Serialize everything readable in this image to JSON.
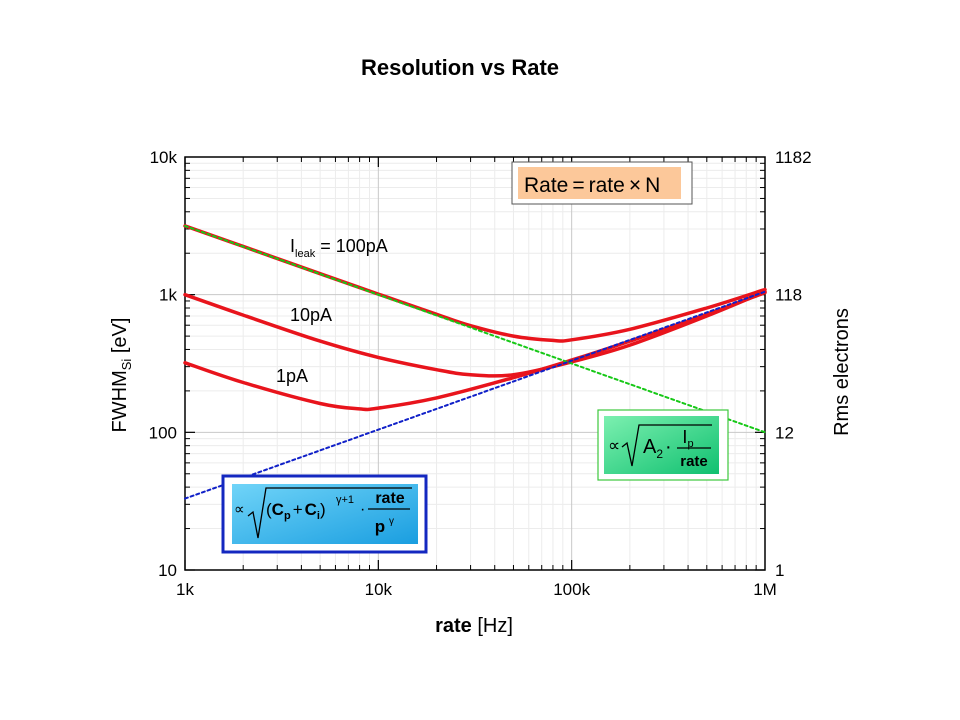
{
  "title": "Resolution vs Rate",
  "chart_data": {
    "type": "line",
    "title": "Resolution vs Rate",
    "x_axis": {
      "label_bold": "rate",
      "label_rest": " [Hz]",
      "scale": "log",
      "range": [
        1000,
        1000000
      ],
      "ticks": [
        "1k",
        "10k",
        "100k",
        "1M"
      ]
    },
    "y_axis_left": {
      "label_main": "FWHM",
      "label_sub": "Si",
      "label_rest": " [eV]",
      "scale": "log",
      "range": [
        10,
        10000
      ],
      "ticks": [
        "10",
        "100",
        "1k",
        "10k"
      ]
    },
    "y_axis_right": {
      "label": "Rms electrons",
      "scale": "log",
      "ticks": [
        "1",
        "12",
        "118",
        "1182"
      ]
    },
    "grid": true,
    "series": [
      {
        "name": "I_leak = 100pA",
        "color": "#e8141c",
        "style": "solid",
        "points": [
          [
            1000,
            3160
          ],
          [
            2000,
            2240
          ],
          [
            5000,
            1420
          ],
          [
            10000,
            1010
          ],
          [
            20000,
            720
          ],
          [
            30000,
            595
          ],
          [
            50000,
            500
          ],
          [
            80000,
            465
          ],
          [
            100000,
            470
          ],
          [
            200000,
            560
          ],
          [
            500000,
            800
          ],
          [
            1000000,
            1090
          ]
        ]
      },
      {
        "name": "10pA",
        "color": "#e8141c",
        "style": "solid",
        "points": [
          [
            1000,
            1000
          ],
          [
            2000,
            710
          ],
          [
            5000,
            460
          ],
          [
            10000,
            350
          ],
          [
            20000,
            285
          ],
          [
            30000,
            262
          ],
          [
            50000,
            262
          ],
          [
            100000,
            325
          ],
          [
            200000,
            430
          ],
          [
            500000,
            700
          ],
          [
            1000000,
            1050
          ]
        ]
      },
      {
        "name": "1pA",
        "color": "#e8141c",
        "style": "solid",
        "points": [
          [
            1000,
            320
          ],
          [
            2000,
            230
          ],
          [
            5000,
            162
          ],
          [
            8000,
            148
          ],
          [
            10000,
            150
          ],
          [
            20000,
            178
          ],
          [
            50000,
            250
          ],
          [
            100000,
            335
          ],
          [
            200000,
            460
          ],
          [
            500000,
            720
          ],
          [
            1000000,
            1035
          ]
        ]
      },
      {
        "name": "",
        "color": "#16c816",
        "style": "dotted",
        "points": [
          [
            1000,
            3160
          ],
          [
            1000000,
            100
          ]
        ]
      },
      {
        "name": "",
        "color": "#1020c8",
        "style": "dotted",
        "points": [
          [
            1000,
            33
          ],
          [
            1000000,
            1050
          ]
        ]
      }
    ],
    "annotations": {
      "leak_100": {
        "main": "I",
        "sub": "leak",
        "rest": " = 100pA"
      },
      "leak_10": "10pA",
      "leak_1": "1pA",
      "rate_formula": {
        "lhs": "Rate",
        "eq": "=",
        "rhs": "rate",
        "times": "×",
        "n": "N"
      },
      "green_formula": {
        "prop": "∝",
        "a": "A",
        "a_sub": "2",
        "dot": "·",
        "num": "I",
        "num_sub": "p",
        "den": "rate"
      },
      "blue_formula": {
        "prop": "∝",
        "cp": "C",
        "cp_sub": "p",
        "plus": "+",
        "ci": "C",
        "ci_sub": "i",
        "exp": "γ+1",
        "dot": "·",
        "num": "rate",
        "den": "p",
        "den_sup": "γ"
      }
    },
    "colors": {
      "curve": "#e8141c",
      "green_asymptote": "#16c816",
      "blue_asymptote": "#1020c8",
      "rate_box": "#fcc89a",
      "green_box": "#26d488",
      "blue_box": "#30b8ec",
      "blue_frame": "#1428c0"
    }
  }
}
